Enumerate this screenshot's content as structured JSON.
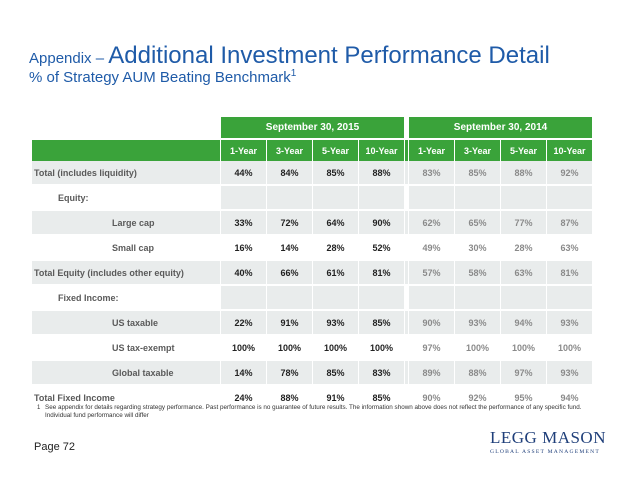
{
  "title": {
    "prefix": "Appendix – ",
    "main": "Additional Investment Performance Detail"
  },
  "subtitle": {
    "text": "% of Strategy AUM Beating Benchmark",
    "sup": "1"
  },
  "table": {
    "periods": [
      "September 30, 2015",
      "September 30, 2014"
    ],
    "columns": [
      "1-Year",
      "3-Year",
      "5-Year",
      "10-Year",
      "1-Year",
      "3-Year",
      "5-Year",
      "10-Year"
    ],
    "rows": [
      {
        "label": "Total (includes liquidity)",
        "values": [
          "44%",
          "84%",
          "85%",
          "88%",
          "83%",
          "85%",
          "88%",
          "92%"
        ]
      },
      {
        "label": "Equity:",
        "values": [
          "",
          "",
          "",
          "",
          "",
          "",
          "",
          ""
        ]
      },
      {
        "label": "Large cap",
        "values": [
          "33%",
          "72%",
          "64%",
          "90%",
          "62%",
          "65%",
          "77%",
          "87%"
        ]
      },
      {
        "label": "Small cap",
        "values": [
          "16%",
          "14%",
          "28%",
          "52%",
          "49%",
          "30%",
          "28%",
          "63%"
        ]
      },
      {
        "label": "Total Equity (includes other equity)",
        "values": [
          "40%",
          "66%",
          "61%",
          "81%",
          "57%",
          "58%",
          "63%",
          "81%"
        ]
      },
      {
        "label": "Fixed Income:",
        "values": [
          "",
          "",
          "",
          "",
          "",
          "",
          "",
          ""
        ]
      },
      {
        "label": "US taxable",
        "values": [
          "22%",
          "91%",
          "93%",
          "85%",
          "90%",
          "93%",
          "94%",
          "93%"
        ]
      },
      {
        "label": "US tax-exempt",
        "values": [
          "100%",
          "100%",
          "100%",
          "100%",
          "97%",
          "100%",
          "100%",
          "100%"
        ]
      },
      {
        "label": "Global taxable",
        "values": [
          "14%",
          "78%",
          "85%",
          "83%",
          "89%",
          "88%",
          "97%",
          "93%"
        ]
      },
      {
        "label": "Total Fixed Income",
        "values": [
          "24%",
          "88%",
          "91%",
          "85%",
          "90%",
          "92%",
          "95%",
          "94%"
        ]
      }
    ]
  },
  "footnote": {
    "mark": "1",
    "text": "See appendix for details regarding strategy performance. Past performance is no guarantee of future results. The information shown above does not reflect the performance of any specific fund. Individual fund performance will differ"
  },
  "page_label": "Page 72",
  "logo": {
    "name": "LEGG MASON",
    "tagline": "GLOBAL ASSET MANAGEMENT"
  },
  "colors": {
    "title_blue": "#1f5ba8",
    "header_green": "#3aa33a",
    "row_shade": "#e9ecec"
  }
}
